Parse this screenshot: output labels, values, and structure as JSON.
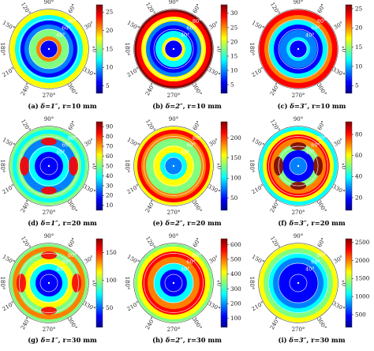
{
  "angle_labels": [
    "0°",
    "30°",
    "60°",
    "90°",
    "120°",
    "150°",
    "180°",
    "210°",
    "240°",
    "270°",
    "300°",
    "330°"
  ],
  "radial_labels": [
    "40°",
    "60°",
    "80°"
  ],
  "chart_data": [
    {
      "type": "heatmap",
      "caption": {
        "letter": "(a)",
        "delta": "δ=1″",
        "radius": "r=10 mm"
      },
      "colorbar": {
        "ticks": [
          "5",
          "10",
          "15",
          "20",
          "25"
        ],
        "range": [
          3,
          27
        ]
      }
    },
    {
      "type": "heatmap",
      "caption": {
        "letter": "(b)",
        "delta": "δ=2″",
        "radius": "r=10 mm"
      },
      "colorbar": {
        "ticks": [
          "5",
          "10",
          "15",
          "20",
          "25",
          "30"
        ],
        "range": [
          2,
          33
        ]
      }
    },
    {
      "type": "heatmap",
      "caption": {
        "letter": "(c)",
        "delta": "δ=3″",
        "radius": "r=10 mm"
      },
      "colorbar": {
        "ticks": [
          "5",
          "10",
          "15",
          "20",
          "25"
        ],
        "range": [
          3,
          26
        ]
      }
    },
    {
      "type": "heatmap",
      "caption": {
        "letter": "(d)",
        "delta": "δ=1″",
        "radius": "r=20 mm"
      },
      "colorbar": {
        "ticks": [
          "10",
          "20",
          "30",
          "40",
          "50",
          "60",
          "70",
          "80",
          "90"
        ],
        "range": [
          5,
          95
        ]
      }
    },
    {
      "type": "heatmap",
      "caption": {
        "letter": "(e)",
        "delta": "δ=2″",
        "radius": "r=20 mm"
      },
      "colorbar": {
        "ticks": [
          "50",
          "100",
          "150",
          "200"
        ],
        "range": [
          20,
          240
        ]
      }
    },
    {
      "type": "heatmap",
      "caption": {
        "letter": "(f)",
        "delta": "δ=3″",
        "radius": "r=20 mm"
      },
      "colorbar": {
        "ticks": [
          "20",
          "40",
          "60",
          "80"
        ],
        "range": [
          8,
          92
        ]
      }
    },
    {
      "type": "heatmap",
      "caption": {
        "letter": "(g)",
        "delta": "δ=1″",
        "radius": "r=30 mm"
      },
      "colorbar": {
        "ticks": [
          "50",
          "100",
          "150"
        ],
        "range": [
          15,
          175
        ]
      }
    },
    {
      "type": "heatmap",
      "caption": {
        "letter": "(h)",
        "delta": "δ=2″",
        "radius": "r=30 mm"
      },
      "colorbar": {
        "ticks": [
          "100",
          "200",
          "300",
          "400",
          "500",
          "600"
        ],
        "range": [
          40,
          640
        ]
      }
    },
    {
      "type": "heatmap",
      "caption": {
        "letter": "(i)",
        "delta": "δ=3″",
        "radius": "r=30 mm"
      },
      "colorbar": {
        "ticks": [
          "500",
          "1000",
          "1500",
          "2000",
          "2500"
        ],
        "range": [
          150,
          2600
        ]
      }
    }
  ]
}
